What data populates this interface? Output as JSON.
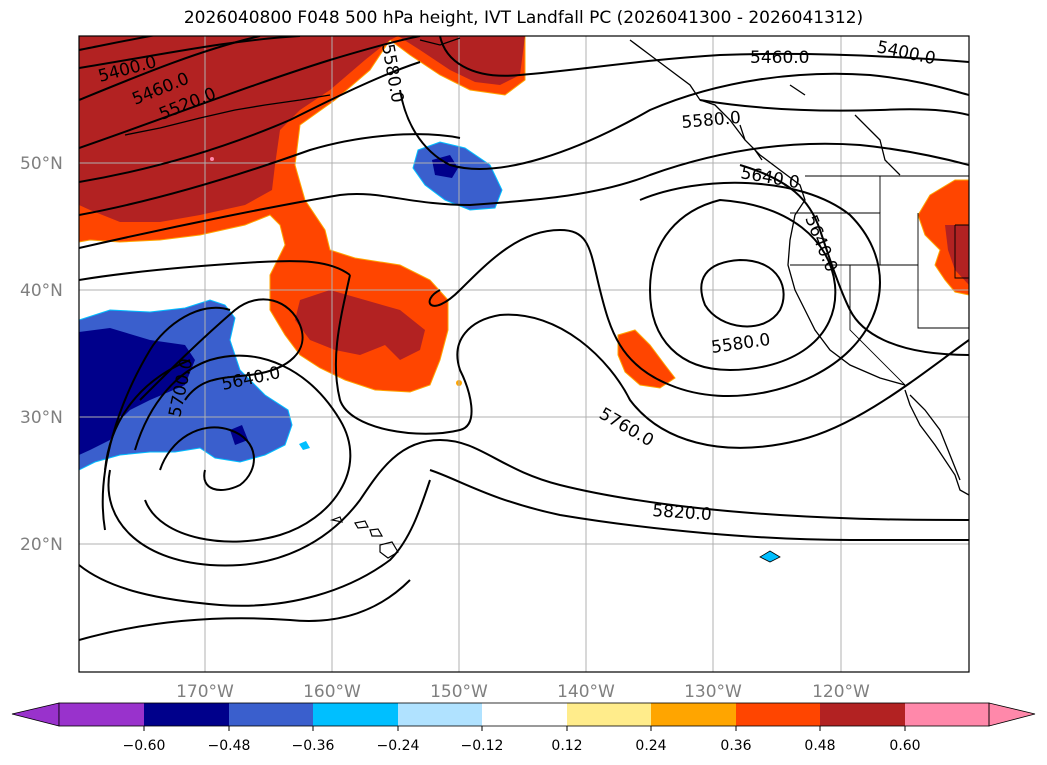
{
  "title": "2026040800 F048 500 hPa height, IVT Landfall PC (2026041300 - 2026041312)",
  "lat_labels": [
    "50°N",
    "40°N",
    "30°N",
    "20°N"
  ],
  "lon_labels": [
    "170°W",
    "160°W",
    "150°W",
    "140°W",
    "130°W",
    "120°W"
  ],
  "contour_labels": [
    "5400.0",
    "5460.0",
    "5520.0",
    "5580.0",
    "5460.0",
    "5400.0",
    "5580.0",
    "5640.0",
    "5640.0",
    "5580.0",
    "5760.0",
    "5820.0",
    "5640.0",
    "5700.0"
  ],
  "colorbar": {
    "ticks": [
      "−0.60",
      "−0.48",
      "−0.36",
      "−0.24",
      "−0.12",
      "0.12",
      "0.24",
      "0.36",
      "0.48",
      "0.60"
    ],
    "colors": [
      "#9932cc",
      "#00008b",
      "#3a5fcd",
      "#00bfff",
      "#b0e2ff",
      "#ffffff",
      "#ffec8b",
      "#ffa500",
      "#ff4500",
      "#b22222",
      "#ff88aa",
      "#ff88aa"
    ]
  }
}
